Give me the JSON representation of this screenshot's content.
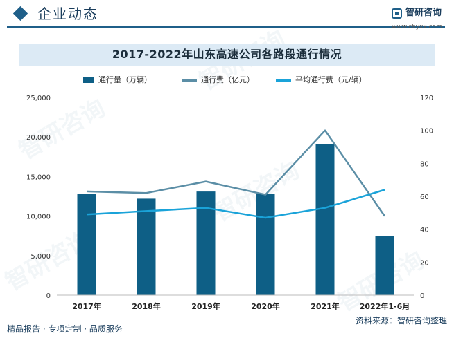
{
  "header": {
    "section_title": "企业动态",
    "logo_text": "智研咨询",
    "logo_url": "www.chyxx.com"
  },
  "chart_data": {
    "type": "bar",
    "title": "2017-2022年山东高速公司各路段通行情况",
    "categories": [
      "2017年",
      "2018年",
      "2019年",
      "2020年",
      "2021年",
      "2022年1-6月"
    ],
    "series": [
      {
        "name": "通行量（万辆）",
        "type": "bar",
        "axis": "left",
        "color": "#0e5f86",
        "values": [
          12800,
          12200,
          13100,
          12800,
          19100,
          7500
        ]
      },
      {
        "name": "通行费（亿元）",
        "type": "line",
        "axis": "right",
        "color": "#5b8ea6",
        "values": [
          63,
          62,
          69,
          61,
          100,
          48
        ]
      },
      {
        "name": "平均通行费（元/辆）",
        "type": "line",
        "axis": "right",
        "color": "#1aa3d9",
        "values": [
          49,
          51,
          53,
          47,
          53,
          64
        ]
      }
    ],
    "y_left": {
      "ylim": [
        0,
        25000
      ],
      "ticks": [
        "0",
        "5,000",
        "10,000",
        "15,000",
        "20,000",
        "25,000"
      ]
    },
    "y_right": {
      "ylim": [
        0,
        120
      ],
      "ticks": [
        "0",
        "20",
        "40",
        "60",
        "80",
        "100",
        "120"
      ]
    },
    "grid": false,
    "legend_position": "top"
  },
  "footer": {
    "left_text": "精品报告 · 专项定制 · 品质服务",
    "source_text": "资料来源：智研咨询整理"
  }
}
